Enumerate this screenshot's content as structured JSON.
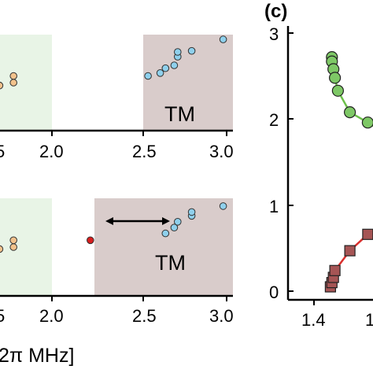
{
  "chart_data": [
    {
      "type": "scatter",
      "panel": "top-left",
      "xlim": [
        1.48,
        3.05
      ],
      "ylim": [
        0,
        1
      ],
      "x_ticks": [
        "5",
        "2.0",
        "2.5",
        "3.0"
      ],
      "region_colors": {
        "left": "#e8f4e6",
        "right": "#d9cccb"
      },
      "region_labels": [
        "",
        "TM"
      ],
      "series": [
        {
          "color": "#f2c28c",
          "points": [
            [
              1.52,
              0.44
            ],
            [
              1.7,
              0.47
            ],
            [
              1.78,
              0.5
            ],
            [
              1.78,
              0.57
            ]
          ]
        },
        {
          "color": "#8fd0ec",
          "points": [
            [
              2.55,
              0.57
            ],
            [
              2.62,
              0.6
            ],
            [
              2.65,
              0.65
            ],
            [
              2.7,
              0.68
            ],
            [
              2.72,
              0.77
            ],
            [
              2.72,
              0.82
            ],
            [
              2.8,
              0.83
            ],
            [
              2.98,
              0.95
            ]
          ]
        }
      ]
    },
    {
      "type": "scatter",
      "panel": "bottom-left",
      "xlim": [
        1.48,
        3.05
      ],
      "ylim": [
        0,
        1
      ],
      "x_ticks": [
        "5",
        "2.0",
        "2.5",
        "3.0"
      ],
      "xlabel": "2π MHz]",
      "region_colors": {
        "left": "#e8f4e6",
        "right": "#d9cccb"
      },
      "region_labels": [
        "",
        "TM"
      ],
      "annotation": "double-arrow",
      "series": [
        {
          "color": "#f2c28c",
          "points": [
            [
              1.52,
              0.44
            ],
            [
              1.7,
              0.48
            ],
            [
              1.78,
              0.5
            ],
            [
              1.78,
              0.57
            ]
          ]
        },
        {
          "color": "#d81e1e",
          "points": [
            [
              2.22,
              0.57
            ]
          ]
        },
        {
          "color": "#8fd0ec",
          "points": [
            [
              2.65,
              0.64
            ],
            [
              2.7,
              0.7
            ],
            [
              2.72,
              0.76
            ],
            [
              2.8,
              0.82
            ],
            [
              2.8,
              0.86
            ],
            [
              2.98,
              0.92
            ]
          ]
        }
      ]
    },
    {
      "type": "line",
      "panel": "right",
      "panel_label": "(c)",
      "ylim": [
        -0.1,
        3.2
      ],
      "y_ticks": [
        "0",
        "1",
        "2",
        "3"
      ],
      "x_ticks": [
        "1.4",
        "1"
      ],
      "series": [
        {
          "color": "#6cc04a",
          "marker_color": "#7ec866",
          "marker": "circle",
          "x": [
            1.46,
            1.46,
            1.465,
            1.47,
            1.48,
            1.52,
            1.58,
            1.65
          ],
          "y": [
            2.72,
            2.67,
            2.58,
            2.48,
            2.33,
            2.08,
            1.96,
            1.8
          ]
        },
        {
          "color": "#d9302e",
          "marker_color": "#a65555",
          "marker": "square",
          "x": [
            1.455,
            1.46,
            1.465,
            1.47,
            1.52,
            1.58,
            1.64,
            1.72
          ],
          "y": [
            0.05,
            0.1,
            0.16,
            0.24,
            0.47,
            0.66,
            0.78,
            0.91
          ]
        }
      ]
    }
  ]
}
